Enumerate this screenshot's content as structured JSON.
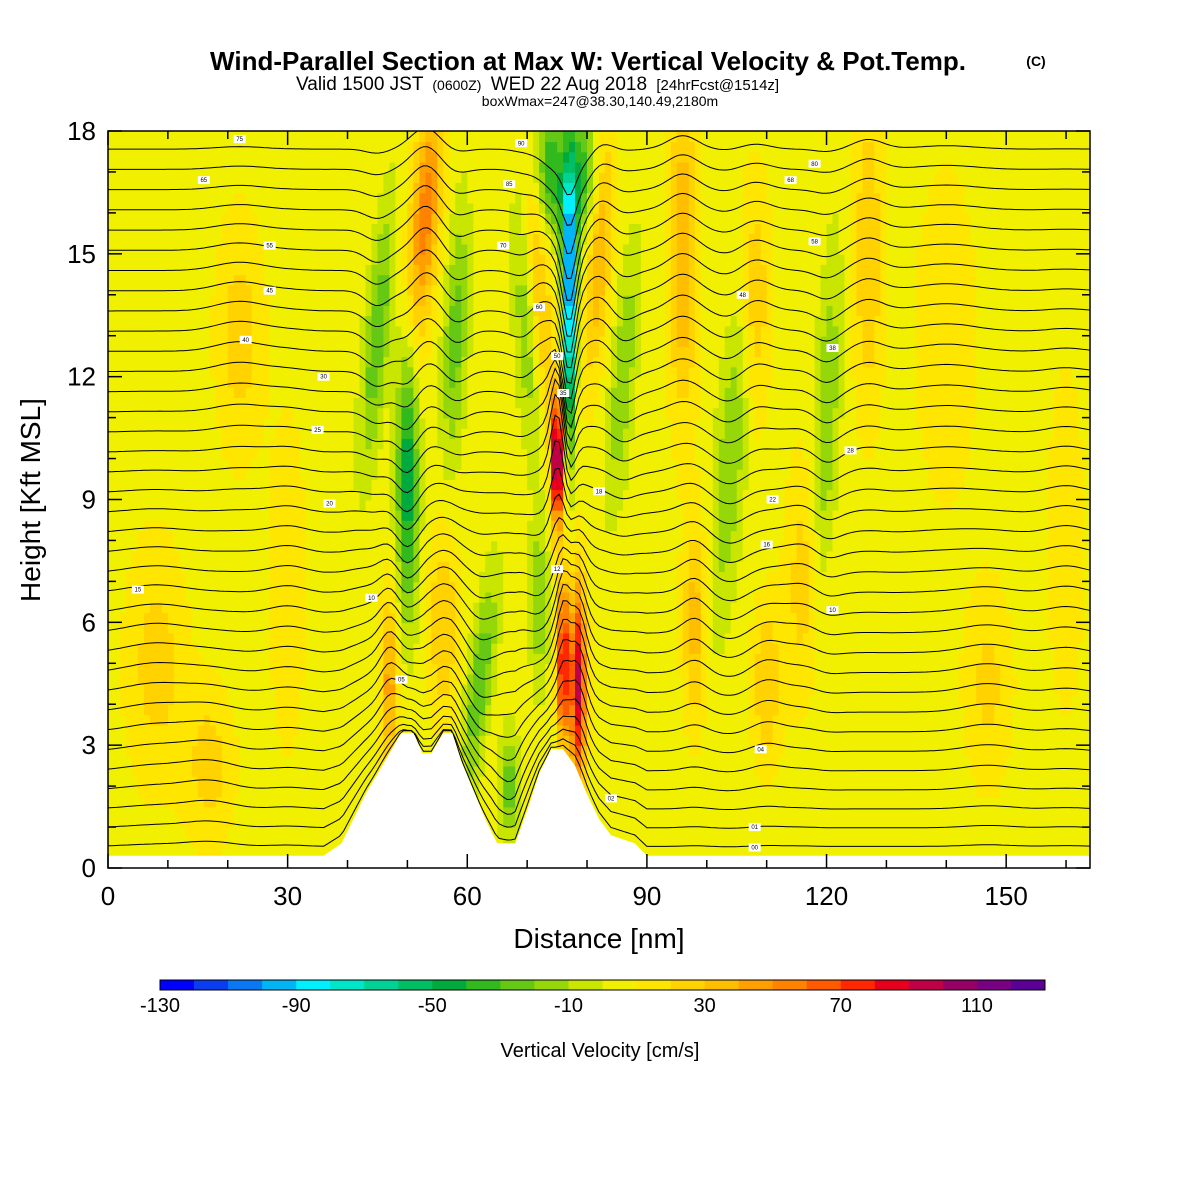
{
  "title": {
    "main": "Wind-Parallel Section at Max W: Vertical Velocity & Pot.Temp.",
    "copyright": "(C)",
    "valid_prefix": "Valid 1500 JST",
    "valid_zulu": "(0600Z)",
    "valid_date": "WED 22 Aug 2018",
    "forecast": "[24hrFcst@1514z]",
    "boxinfo": "boxWmax=247@38.30,140.49,2180m"
  },
  "chart_data": {
    "type": "heatmap",
    "xlabel": "Distance [nm]",
    "ylabel": "Height [Kft MSL]",
    "xlim": [
      0,
      164
    ],
    "ylim": [
      0,
      18
    ],
    "xticks": [
      "0",
      "30",
      "60",
      "90",
      "120",
      "150"
    ],
    "yticks": [
      "0",
      "3",
      "6",
      "9",
      "12",
      "15",
      "18"
    ],
    "colorbar": {
      "title": "Vertical Velocity [cm/s]",
      "tick_labels": [
        "-130",
        "-90",
        "-50",
        "-10",
        "30",
        "70",
        "110"
      ],
      "levels": [
        -130,
        -120,
        -110,
        -100,
        -90,
        -80,
        -70,
        -60,
        -50,
        -40,
        -30,
        -20,
        -10,
        0,
        10,
        20,
        30,
        40,
        50,
        60,
        70,
        80,
        90,
        100,
        110,
        120
      ],
      "colors": [
        "#0000ff",
        "#0a3cf0",
        "#0a78f5",
        "#00b4f5",
        "#00f0ff",
        "#00e6c8",
        "#00d296",
        "#00be64",
        "#00aa3c",
        "#32b91e",
        "#64c814",
        "#96d70a",
        "#c8e600",
        "#f0f000",
        "#ffe600",
        "#ffd200",
        "#ffbe00",
        "#ffa000",
        "#ff8200",
        "#ff5a00",
        "#ff2800",
        "#e6001e",
        "#be0046",
        "#960064",
        "#780082",
        "#5a0096"
      ]
    },
    "terrain_kft": [
      [
        0,
        0.3
      ],
      [
        36,
        0.3
      ],
      [
        39,
        0.6
      ],
      [
        41,
        1.2
      ],
      [
        43,
        1.8
      ],
      [
        45,
        2.3
      ],
      [
        47,
        2.8
      ],
      [
        49,
        3.3
      ],
      [
        51,
        3.3
      ],
      [
        52.5,
        2.8
      ],
      [
        54,
        2.8
      ],
      [
        56,
        3.3
      ],
      [
        57.5,
        3.3
      ],
      [
        59,
        2.6
      ],
      [
        61,
        1.9
      ],
      [
        63,
        1.2
      ],
      [
        65,
        0.6
      ],
      [
        68,
        0.6
      ],
      [
        70,
        1.4
      ],
      [
        72,
        2.3
      ],
      [
        74,
        2.9
      ],
      [
        76,
        2.9
      ],
      [
        78,
        2.5
      ],
      [
        80,
        1.8
      ],
      [
        82,
        1.2
      ],
      [
        84,
        0.8
      ],
      [
        88,
        0.6
      ],
      [
        90,
        0.3
      ],
      [
        164,
        0.3
      ]
    ],
    "w_features": [
      {
        "x": 50,
        "z": 9.5,
        "sx": 1.8,
        "sz": 3.2,
        "w": -55,
        "tilt": 0.0
      },
      {
        "x": 47,
        "z": 4.5,
        "sx": 1.5,
        "sz": 2.2,
        "w": 40,
        "tilt": 0.0
      },
      {
        "x": 53,
        "z": 16,
        "sx": 2.5,
        "sz": 3.0,
        "w": 50,
        "tilt": 0.5
      },
      {
        "x": 45,
        "z": 13,
        "sx": 2.0,
        "sz": 3.0,
        "w": -35,
        "tilt": 0.6
      },
      {
        "x": 58,
        "z": 13,
        "sx": 2.0,
        "sz": 3.0,
        "w": -30,
        "tilt": 0.3
      },
      {
        "x": 56,
        "z": 6,
        "sx": 2.5,
        "sz": 2.5,
        "w": 25,
        "tilt": 0.0
      },
      {
        "x": 62,
        "z": 4.5,
        "sx": 2.0,
        "sz": 2.5,
        "w": -35,
        "tilt": 0.8
      },
      {
        "x": 67,
        "z": 2.0,
        "sx": 1.5,
        "sz": 1.2,
        "w": -35,
        "tilt": 0.0
      },
      {
        "x": 75,
        "z": 10,
        "sx": 1.0,
        "sz": 1.6,
        "w": 115,
        "tilt": 0.0
      },
      {
        "x": 76,
        "z": 5.0,
        "sx": 1.0,
        "sz": 2.0,
        "w": 85,
        "tilt": 0.0
      },
      {
        "x": 78.5,
        "z": 4.5,
        "sx": 1.3,
        "sz": 2.5,
        "w": 90,
        "tilt": 0.0
      },
      {
        "x": 77,
        "z": 13.5,
        "sx": 1.0,
        "sz": 3.0,
        "w": -110,
        "tilt": 0.0
      },
      {
        "x": 77,
        "z": 15.5,
        "sx": 1.5,
        "sz": 1.5,
        "w": -40,
        "tilt": 0.0
      },
      {
        "x": 74,
        "z": 17,
        "sx": 2.5,
        "sz": 1.5,
        "w": -45,
        "tilt": 0.0
      },
      {
        "x": 79,
        "z": 17,
        "sx": 2.5,
        "sz": 1.5,
        "w": -40,
        "tilt": 0.0
      },
      {
        "x": 82,
        "z": 15,
        "sx": 2.0,
        "sz": 3.0,
        "w": 35,
        "tilt": 0.4
      },
      {
        "x": 72,
        "z": 14,
        "sx": 2.0,
        "sz": 3.0,
        "w": 30,
        "tilt": -0.3
      },
      {
        "x": 86,
        "z": 12,
        "sx": 2.0,
        "sz": 3.0,
        "w": -25,
        "tilt": 0.5
      },
      {
        "x": 70,
        "z": 13,
        "sx": 2.0,
        "sz": 3.0,
        "w": -25,
        "tilt": -0.4
      },
      {
        "x": 72,
        "z": 6.5,
        "sx": 1.5,
        "sz": 2.0,
        "w": -25,
        "tilt": 0.0
      },
      {
        "x": 96,
        "z": 15,
        "sx": 2.5,
        "sz": 4.0,
        "w": 35,
        "tilt": 0.0
      },
      {
        "x": 98,
        "z": 6,
        "sx": 2.0,
        "sz": 2.5,
        "w": 30,
        "tilt": 0.0
      },
      {
        "x": 104,
        "z": 10,
        "sx": 2.5,
        "sz": 4.0,
        "w": -25,
        "tilt": 0.5
      },
      {
        "x": 108,
        "z": 14,
        "sx": 2.5,
        "sz": 3.0,
        "w": 25,
        "tilt": 0.0
      },
      {
        "x": 110,
        "z": 4.5,
        "sx": 2.5,
        "sz": 2.0,
        "w": 25,
        "tilt": 0.0
      },
      {
        "x": 120,
        "z": 11,
        "sx": 2.0,
        "sz": 4.0,
        "w": -25,
        "tilt": 0.3
      },
      {
        "x": 116,
        "z": 7,
        "sx": 3.0,
        "sz": 3.0,
        "w": 20,
        "tilt": 0.0
      },
      {
        "x": 127,
        "z": 15,
        "sx": 2.5,
        "sz": 4.0,
        "w": 25,
        "tilt": 0.0
      },
      {
        "x": 8,
        "z": 5,
        "sx": 5.0,
        "sz": 3.0,
        "w": 20,
        "tilt": 0.0
      },
      {
        "x": 22,
        "z": 13,
        "sx": 4.0,
        "sz": 3.0,
        "w": 20,
        "tilt": 0.0
      },
      {
        "x": 17,
        "z": 2.5,
        "sx": 4.0,
        "sz": 2.0,
        "w": 20,
        "tilt": 0.0
      },
      {
        "x": 30,
        "z": 7,
        "sx": 3.0,
        "sz": 4.0,
        "w": 15,
        "tilt": 0.0
      },
      {
        "x": 140,
        "z": 13,
        "sx": 5.0,
        "sz": 4.0,
        "w": 15,
        "tilt": 0.0
      },
      {
        "x": 147,
        "z": 4.5,
        "sx": 4.0,
        "sz": 2.5,
        "w": 18,
        "tilt": 0.0
      },
      {
        "x": 160,
        "z": 8,
        "sx": 3.0,
        "sz": 4.0,
        "w": 15,
        "tilt": 0.0
      }
    ],
    "theta_contours": {
      "count": 36,
      "level_labels": [
        {
          "x": 22,
          "z": 17.8,
          "text": "75"
        },
        {
          "x": 16,
          "z": 16.8,
          "text": "65"
        },
        {
          "x": 27,
          "z": 15.2,
          "text": "55"
        },
        {
          "x": 27,
          "z": 14.1,
          "text": "45"
        },
        {
          "x": 23,
          "z": 12.9,
          "text": "40"
        },
        {
          "x": 36,
          "z": 12.0,
          "text": "30"
        },
        {
          "x": 35,
          "z": 10.7,
          "text": "25"
        },
        {
          "x": 37,
          "z": 8.9,
          "text": "20"
        },
        {
          "x": 5,
          "z": 6.8,
          "text": "15"
        },
        {
          "x": 44,
          "z": 6.6,
          "text": "10"
        },
        {
          "x": 49,
          "z": 4.6,
          "text": "05"
        },
        {
          "x": 69,
          "z": 17.7,
          "text": "90"
        },
        {
          "x": 67,
          "z": 16.7,
          "text": "85"
        },
        {
          "x": 66,
          "z": 15.2,
          "text": "70"
        },
        {
          "x": 72,
          "z": 13.7,
          "text": "60"
        },
        {
          "x": 75,
          "z": 12.5,
          "text": "50"
        },
        {
          "x": 76,
          "z": 11.6,
          "text": "35"
        },
        {
          "x": 82,
          "z": 9.2,
          "text": "18"
        },
        {
          "x": 75,
          "z": 7.3,
          "text": "12"
        },
        {
          "x": 84,
          "z": 1.7,
          "text": "02"
        },
        {
          "x": 118,
          "z": 17.2,
          "text": "80"
        },
        {
          "x": 114,
          "z": 16.8,
          "text": "68"
        },
        {
          "x": 118,
          "z": 15.3,
          "text": "58"
        },
        {
          "x": 106,
          "z": 14.0,
          "text": "48"
        },
        {
          "x": 121,
          "z": 12.7,
          "text": "38"
        },
        {
          "x": 124,
          "z": 10.2,
          "text": "28"
        },
        {
          "x": 111,
          "z": 9.0,
          "text": "22"
        },
        {
          "x": 110,
          "z": 7.9,
          "text": "16"
        },
        {
          "x": 121,
          "z": 6.3,
          "text": "10"
        },
        {
          "x": 109,
          "z": 2.9,
          "text": "04"
        },
        {
          "x": 108,
          "z": 1.0,
          "text": "01"
        },
        {
          "x": 108,
          "z": 0.5,
          "text": "00"
        }
      ]
    }
  }
}
